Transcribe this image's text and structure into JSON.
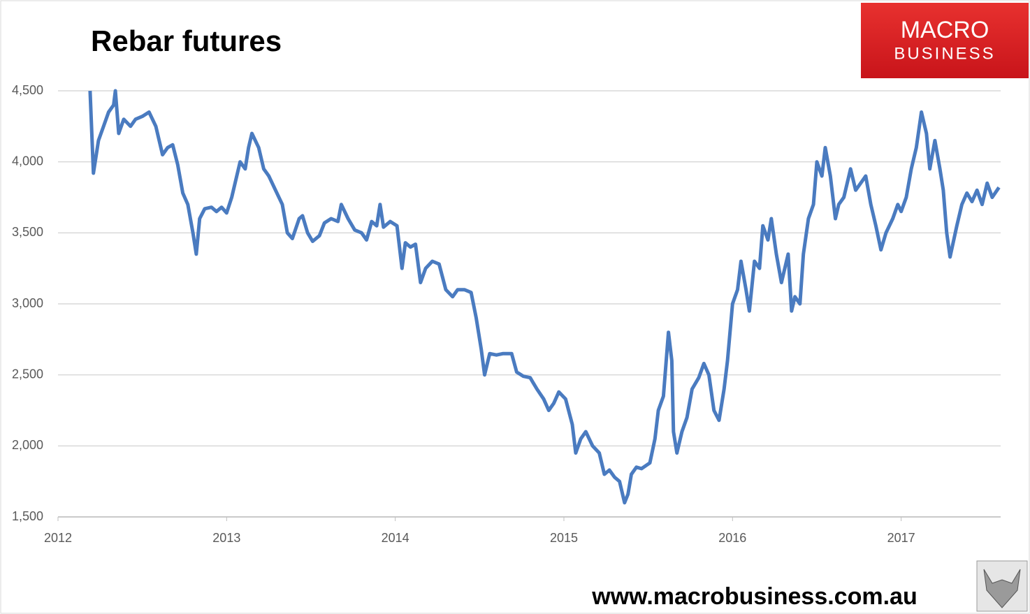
{
  "chart_data": {
    "type": "line",
    "title": "Rebar futures",
    "color": "#4a7bc0",
    "x": [
      2012.19,
      2012.21,
      2012.24,
      2012.27,
      2012.3,
      2012.33,
      2012.34,
      2012.36,
      2012.39,
      2012.43,
      2012.46,
      2012.5,
      2012.54,
      2012.58,
      2012.62,
      2012.65,
      2012.68,
      2012.71,
      2012.74,
      2012.77,
      2012.8,
      2012.82,
      2012.84,
      2012.87,
      2012.91,
      2012.94,
      2012.97,
      2013.0,
      2013.03,
      2013.08,
      2013.11,
      2013.13,
      2013.15,
      2013.19,
      2013.22,
      2013.25,
      2013.29,
      2013.33,
      2013.36,
      2013.39,
      2013.43,
      2013.45,
      2013.48,
      2013.51,
      2013.55,
      2013.58,
      2013.62,
      2013.66,
      2013.68,
      2013.72,
      2013.76,
      2013.8,
      2013.83,
      2013.86,
      2013.89,
      2013.91,
      2013.93,
      2013.97,
      2014.01,
      2014.04,
      2014.06,
      2014.09,
      2014.12,
      2014.15,
      2014.18,
      2014.22,
      2014.26,
      2014.3,
      2014.34,
      2014.37,
      2014.41,
      2014.45,
      2014.48,
      2014.51,
      2014.53,
      2014.56,
      2014.6,
      2014.64,
      2014.69,
      2014.72,
      2014.76,
      2014.8,
      2014.84,
      2014.88,
      2014.91,
      2014.94,
      2014.97,
      2015.01,
      2015.05,
      2015.07,
      2015.1,
      2015.13,
      2015.17,
      2015.21,
      2015.24,
      2015.27,
      2015.3,
      2015.33,
      2015.36,
      2015.38,
      2015.4,
      2015.43,
      2015.46,
      2015.51,
      2015.54,
      2015.56,
      2015.59,
      2015.62,
      2015.64,
      2015.65,
      2015.67,
      2015.7,
      2015.73,
      2015.76,
      2015.8,
      2015.83,
      2015.86,
      2015.89,
      2015.92,
      2015.95,
      2015.97,
      2016.0,
      2016.03,
      2016.05,
      2016.08,
      2016.1,
      2016.13,
      2016.16,
      2016.18,
      2016.21,
      2016.23,
      2016.26,
      2016.29,
      2016.33,
      2016.35,
      2016.37,
      2016.4,
      2016.42,
      2016.45,
      2016.48,
      2016.5,
      2016.53,
      2016.55,
      2016.58,
      2016.61,
      2016.63,
      2016.66,
      2016.7,
      2016.73,
      2016.76,
      2016.79,
      2016.82,
      2016.85,
      2016.88,
      2016.91,
      2016.95,
      2016.98,
      2017.0,
      2017.03,
      2017.06,
      2017.09,
      2017.12,
      2017.15,
      2017.17,
      2017.2,
      2017.23,
      2017.25,
      2017.27,
      2017.29,
      2017.33,
      2017.36,
      2017.39,
      2017.42,
      2017.45,
      2017.48,
      2017.51,
      2017.54,
      2017.58
    ],
    "values": [
      4500,
      3920,
      4150,
      4250,
      4350,
      4400,
      4500,
      4200,
      4300,
      4250,
      4300,
      4320,
      4350,
      4250,
      4050,
      4100,
      4120,
      3980,
      3780,
      3700,
      3500,
      3350,
      3600,
      3670,
      3680,
      3650,
      3680,
      3640,
      3750,
      4000,
      3950,
      4100,
      4200,
      4100,
      3950,
      3900,
      3800,
      3700,
      3500,
      3460,
      3600,
      3620,
      3500,
      3440,
      3480,
      3570,
      3600,
      3580,
      3700,
      3600,
      3520,
      3500,
      3450,
      3580,
      3550,
      3700,
      3540,
      3580,
      3550,
      3250,
      3430,
      3400,
      3420,
      3150,
      3250,
      3300,
      3280,
      3100,
      3050,
      3100,
      3100,
      3080,
      2900,
      2680,
      2500,
      2650,
      2640,
      2650,
      2650,
      2520,
      2490,
      2480,
      2400,
      2330,
      2250,
      2300,
      2380,
      2330,
      2150,
      1950,
      2050,
      2100,
      2000,
      1950,
      1800,
      1830,
      1780,
      1750,
      1600,
      1660,
      1800,
      1850,
      1840,
      1880,
      2050,
      2250,
      2350,
      2800,
      2600,
      2100,
      1950,
      2100,
      2200,
      2400,
      2480,
      2580,
      2500,
      2250,
      2180,
      2400,
      2600,
      3000,
      3100,
      3300,
      3100,
      2950,
      3300,
      3250,
      3550,
      3450,
      3600,
      3350,
      3150,
      3350,
      2950,
      3050,
      3000,
      3350,
      3600,
      3700,
      4000,
      3900,
      4100,
      3900,
      3600,
      3700,
      3750,
      3950,
      3800,
      3850,
      3900,
      3700,
      3550,
      3380,
      3500,
      3600,
      3700,
      3650,
      3750,
      3950,
      4100,
      4350,
      4200,
      3950,
      4150,
      3950,
      3800,
      3500,
      3330,
      3550,
      3700,
      3780,
      3720,
      3800,
      3700,
      3850,
      3750,
      3820
    ],
    "xlim": [
      2012,
      2017.59
    ],
    "xticks": [
      2012,
      2013,
      2014,
      2015,
      2016,
      2017
    ],
    "ylim": [
      1500,
      4500
    ],
    "yticks": [
      {
        "value": 1500,
        "label": "1,500"
      },
      {
        "value": 2000,
        "label": "2,000"
      },
      {
        "value": 2500,
        "label": "2,500"
      },
      {
        "value": 3000,
        "label": "3,000"
      },
      {
        "value": 3500,
        "label": "3,500"
      },
      {
        "value": 4000,
        "label": "4,000"
      },
      {
        "value": 4500,
        "label": "4,500"
      }
    ],
    "grid": true
  },
  "logo": {
    "line1": "MACRO",
    "line2": "BUSINESS"
  },
  "footer": "www.macrobusiness.com.au"
}
